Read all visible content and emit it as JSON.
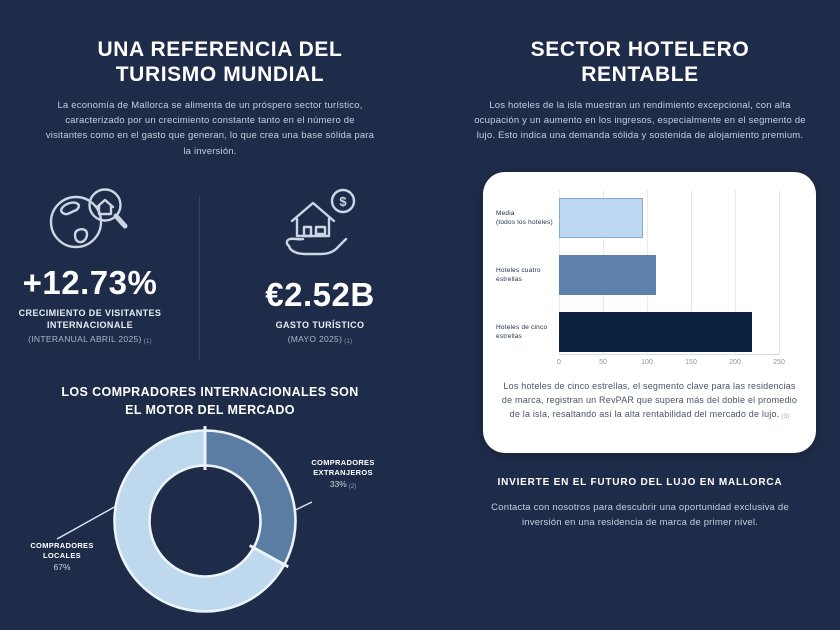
{
  "theme": {
    "background": "#1f2c49",
    "card_background": "#ffffff",
    "heading_color": "#ffffff",
    "body_text_color": "#c6cfdc",
    "icon_color": "#ccd6e4"
  },
  "left": {
    "title": "UNA REFERENCIA DEL\nTURISMO MUNDIAL",
    "intro": "La economía de Mallorca se alimenta de un próspero sector turístico, caracterizado por un crecimiento constante tanto en el número de visitantes como en el gasto que generan, lo que crea una base sólida para la inversión.",
    "stats": [
      {
        "icon": "globe-magnifier-icon",
        "value": "+12.73%",
        "label": "CRECIMIENTO DE VISITANTES\nINTERNACIONALE",
        "sublabel": "(INTERANUAL ABRIL 2025)",
        "footnote": "(1)"
      },
      {
        "icon": "house-hand-dollar-icon",
        "value": "€2.52B",
        "label": "GASTO TURÍSTICO",
        "sublabel": "(MAYO 2025)",
        "footnote": "(1)"
      }
    ],
    "dollar_sign": "$"
  },
  "right": {
    "title": "SECTOR HOTELERO\nRENTABLE",
    "intro": "Los hoteles de la isla muestran un rendimiento excepcional, con alta ocupación y un aumento en los ingresos, especialmente en el segmento de lujo. Esto indica una demanda sólida y sostenida de alojamiento premium.",
    "chart_note": "Los hoteles de cinco estrellas, el segmento clave para las residencias de marca, registran un RevPAR que supera más del doble el promedio de la isla, resaltando así la alta rentabilidad del mercado de lujo.",
    "chart_note_footnote": "(3)",
    "invest_title": "INVIERTE EN EL FUTURO DEL LUJO EN MALLORCA",
    "contact": "Contacta con nosotros para descubrir una oportunidad exclusiva de inversión en una residencia de marca de primer nivel."
  },
  "chart_data": [
    {
      "type": "pie",
      "donut": true,
      "title": "LOS COMPRADORES INTERNACIONALES SON\nEL MOTOR DEL MERCADO",
      "labels": [
        "COMPRADORES\nLOCALES",
        "COMPRADORES\nEXTRANJEROS"
      ],
      "values": [
        67,
        33
      ],
      "display_values": [
        "67%",
        "33%"
      ],
      "colors": [
        "#bed8ee",
        "#5b7da4"
      ],
      "ring_outline_color": "#edf3fa",
      "footnote_extranjeros": "(2)",
      "legend_position": "callout-labels"
    },
    {
      "type": "bar",
      "orientation": "horizontal",
      "categories": [
        "Media\n(todos los hoteles)",
        "Hoteles cuatro\nestrellas",
        "Hoteles de cinco\nestrellas"
      ],
      "values": [
        96,
        110,
        219
      ],
      "colors": [
        "#bdd7f0",
        "#5d81ab",
        "#0d2140"
      ],
      "xlim": [
        0,
        250
      ],
      "xticks": [
        0,
        50,
        100,
        150,
        200,
        250
      ],
      "grid": true,
      "ylabel": "",
      "xlabel": ""
    }
  ]
}
